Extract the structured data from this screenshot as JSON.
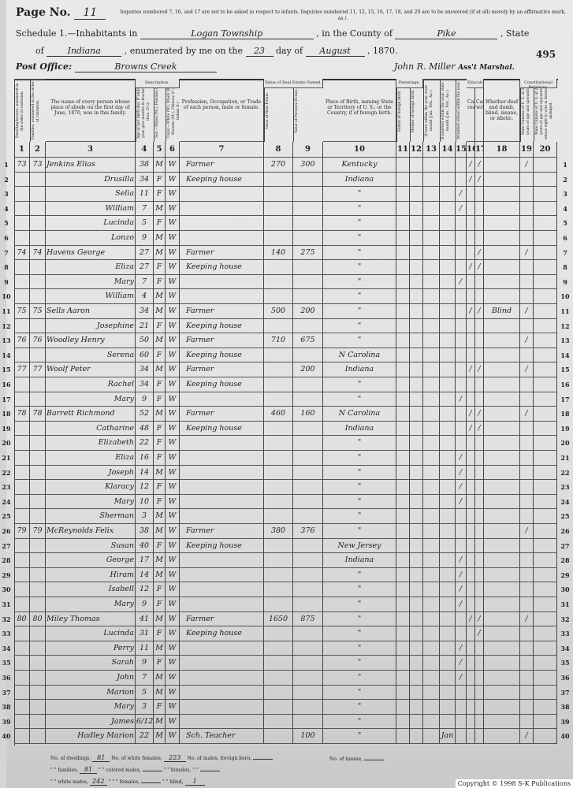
{
  "header": {
    "page_label": "Page No.",
    "page_no": "11",
    "instructions": "Inquiries numbered 7, 16, and 17 are not to be asked in respect to infants. Inquiries numbered 11, 12, 15, 16, 17, 18, and 20 are to be answered (if at all) merely by an affirmative mark, as /.",
    "schedule_label": "Schedule 1.—Inhabitants in",
    "township": "Logan Township",
    "county_label": ", in the County of",
    "county": "Pike",
    "state_label": ", State",
    "of_label": "of",
    "state": "Indiana",
    "enumerated_label": ", enumerated by me on the",
    "day": "23",
    "day_of_label": "day of",
    "month": "August",
    "year": ", 1870.",
    "sheet_no": "495",
    "post_office_label": "Post Office:",
    "post_office": "Browns Creek",
    "marshal_signature": "John R. Miller",
    "marshal_label": "Ass't Marshal."
  },
  "columns": [
    {
      "num": "1",
      "label": "Dwelling-houses, numbered in the order of visitation."
    },
    {
      "num": "2",
      "label": "Families, numbered in the order of visitation."
    },
    {
      "num": "3",
      "label": "The name of every person whose place of abode on the first day of June, 1870, was in this family."
    },
    {
      "num": "4",
      "label": "Age at last birth-day. If under 1 year, give months in fractions, thus, 3/12."
    },
    {
      "num": "5",
      "label": "Sex.—Males (M.), Females (F.)"
    },
    {
      "num": "6",
      "label": "Color.—White (W.), Black (B.), Mulatto (M.), Chinese (C.), Indian (I.)"
    },
    {
      "num": "7",
      "label": "Profession, Occupation, or Trade of each person, male or female."
    },
    {
      "num": "8",
      "label": "Value of Real Estate."
    },
    {
      "num": "9",
      "label": "Value of Personal Estate."
    },
    {
      "num": "10",
      "label": "Place of Birth, naming State or Territory of U. S.; or the Country, if of foreign birth."
    },
    {
      "num": "11",
      "label": "Father of foreign birth."
    },
    {
      "num": "12",
      "label": "Mother of foreign birth."
    },
    {
      "num": "13",
      "label": "If born within the year, state month (Jan., Feb., &c.)"
    },
    {
      "num": "14",
      "label": "If married within the year, state month (Jan., Feb., &c.)"
    },
    {
      "num": "15",
      "label": "Attended school within the year."
    },
    {
      "num": "16",
      "label": "Cannot read."
    },
    {
      "num": "17",
      "label": "Cannot write."
    },
    {
      "num": "18",
      "label": "Whether deaf and dumb, blind, insane, or idiotic."
    },
    {
      "num": "19",
      "label": "Male Citizens of U. S. of 21 years of age and upwards."
    },
    {
      "num": "20",
      "label": "Male Citizens of U. S. of 21 years of age and upwards, whose right to vote is denied or abridged."
    }
  ],
  "group_headers": {
    "description": "Description.",
    "value": "Value of Real Estate Owned.",
    "parentage": "Parentage.",
    "education": "Education.",
    "constitutional": "Constitutional Relations."
  },
  "rows": [
    [
      "1",
      "73",
      "73",
      "Jenkins Elias",
      "38",
      "M",
      "W",
      "Farmer",
      "270",
      "300",
      "Kentucky",
      "",
      "",
      "",
      "",
      "",
      "/",
      "/",
      "",
      "/",
      ""
    ],
    [
      "2",
      "",
      "",
      "Drusilla",
      "34",
      "F",
      "W",
      "Keeping house",
      "",
      "",
      "Indiana",
      "",
      "",
      "",
      "",
      "",
      "/",
      "/",
      "",
      "",
      ""
    ],
    [
      "3",
      "",
      "",
      "Selia",
      "11",
      "F",
      "W",
      "",
      "",
      "",
      "\"",
      "",
      "",
      "",
      "",
      "/",
      "",
      "",
      "",
      "",
      ""
    ],
    [
      "4",
      "",
      "",
      "William",
      "7",
      "M",
      "W",
      "",
      "",
      "",
      "\"",
      "",
      "",
      "",
      "",
      "/",
      "",
      "",
      "",
      "",
      ""
    ],
    [
      "5",
      "",
      "",
      "Lucinda",
      "5",
      "F",
      "W",
      "",
      "",
      "",
      "\"",
      "",
      "",
      "",
      "",
      "",
      "",
      "",
      "",
      "",
      ""
    ],
    [
      "6",
      "",
      "",
      "Lonzo",
      "9",
      "M",
      "W",
      "",
      "",
      "",
      "\"",
      "",
      "",
      "",
      "",
      "",
      "",
      "",
      "",
      "",
      ""
    ],
    [
      "7",
      "74",
      "74",
      "Havens George",
      "27",
      "M",
      "W",
      "Farmer",
      "140",
      "275",
      "\"",
      "",
      "",
      "",
      "",
      "",
      "",
      "/",
      "",
      "/",
      ""
    ],
    [
      "8",
      "",
      "",
      "Eliza",
      "27",
      "F",
      "W",
      "Keeping house",
      "",
      "",
      "\"",
      "",
      "",
      "",
      "",
      "",
      "/",
      "/",
      "",
      "",
      ""
    ],
    [
      "9",
      "",
      "",
      "Mary",
      "7",
      "F",
      "W",
      "",
      "",
      "",
      "\"",
      "",
      "",
      "",
      "",
      "/",
      "",
      "",
      "",
      "",
      ""
    ],
    [
      "10",
      "",
      "",
      "William",
      "4",
      "M",
      "W",
      "",
      "",
      "",
      "\"",
      "",
      "",
      "",
      "",
      "",
      "",
      "",
      "",
      "",
      ""
    ],
    [
      "11",
      "75",
      "75",
      "Sells Aaron",
      "34",
      "M",
      "W",
      "Farmer",
      "500",
      "200",
      "\"",
      "",
      "",
      "",
      "",
      "",
      "/",
      "/",
      "Blind",
      "/",
      ""
    ],
    [
      "12",
      "",
      "",
      "Josephine",
      "21",
      "F",
      "W",
      "Keeping house",
      "",
      "",
      "\"",
      "",
      "",
      "",
      "",
      "",
      "",
      "",
      "",
      "",
      ""
    ],
    [
      "13",
      "76",
      "76",
      "Woodley Henry",
      "50",
      "M",
      "W",
      "Farmer",
      "710",
      "675",
      "\"",
      "",
      "",
      "",
      "",
      "",
      "",
      "",
      "",
      "/",
      ""
    ],
    [
      "14",
      "",
      "",
      "Serena",
      "60",
      "F",
      "W",
      "Keeping house",
      "",
      "",
      "N Carolina",
      "",
      "",
      "",
      "",
      "",
      "",
      "",
      "",
      "",
      ""
    ],
    [
      "15",
      "77",
      "77",
      "Woolf Peter",
      "34",
      "M",
      "W",
      "Farmer",
      "",
      "200",
      "Indiana",
      "",
      "",
      "",
      "",
      "",
      "/",
      "/",
      "",
      "/",
      ""
    ],
    [
      "16",
      "",
      "",
      "Rachel",
      "34",
      "F",
      "W",
      "Keeping house",
      "",
      "",
      "\"",
      "",
      "",
      "",
      "",
      "",
      "",
      "",
      "",
      "",
      ""
    ],
    [
      "17",
      "",
      "",
      "Mary",
      "9",
      "F",
      "W",
      "",
      "",
      "",
      "\"",
      "",
      "",
      "",
      "",
      "/",
      "",
      "",
      "",
      "",
      ""
    ],
    [
      "18",
      "78",
      "78",
      "Barrett Richmond",
      "52",
      "M",
      "W",
      "Farmer",
      "460",
      "160",
      "N Carolina",
      "",
      "",
      "",
      "",
      "",
      "/",
      "/",
      "",
      "/",
      ""
    ],
    [
      "19",
      "",
      "",
      "Catharine",
      "48",
      "F",
      "W",
      "Keeping house",
      "",
      "",
      "Indiana",
      "",
      "",
      "",
      "",
      "",
      "/",
      "/",
      "",
      "",
      ""
    ],
    [
      "20",
      "",
      "",
      "Elizabeth",
      "22",
      "F",
      "W",
      "",
      "",
      "",
      "\"",
      "",
      "",
      "",
      "",
      "",
      "",
      "",
      "",
      "",
      ""
    ],
    [
      "21",
      "",
      "",
      "Eliza",
      "16",
      "F",
      "W",
      "",
      "",
      "",
      "\"",
      "",
      "",
      "",
      "",
      "/",
      "",
      "",
      "",
      "",
      ""
    ],
    [
      "22",
      "",
      "",
      "Joseph",
      "14",
      "M",
      "W",
      "",
      "",
      "",
      "\"",
      "",
      "",
      "",
      "",
      "/",
      "",
      "",
      "",
      "",
      ""
    ],
    [
      "23",
      "",
      "",
      "Klaracy",
      "12",
      "F",
      "W",
      "",
      "",
      "",
      "\"",
      "",
      "",
      "",
      "",
      "/",
      "",
      "",
      "",
      "",
      ""
    ],
    [
      "24",
      "",
      "",
      "Mary",
      "10",
      "F",
      "W",
      "",
      "",
      "",
      "\"",
      "",
      "",
      "",
      "",
      "/",
      "",
      "",
      "",
      "",
      ""
    ],
    [
      "25",
      "",
      "",
      "Sherman",
      "3",
      "M",
      "W",
      "",
      "",
      "",
      "\"",
      "",
      "",
      "",
      "",
      "",
      "",
      "",
      "",
      "",
      ""
    ],
    [
      "26",
      "79",
      "79",
      "McReynolds Felix",
      "38",
      "M",
      "W",
      "Farmer",
      "380",
      "376",
      "\"",
      "",
      "",
      "",
      "",
      "",
      "",
      "",
      "",
      "/",
      ""
    ],
    [
      "27",
      "",
      "",
      "Susan",
      "40",
      "F",
      "W",
      "Keeping house",
      "",
      "",
      "New Jersey",
      "",
      "",
      "",
      "",
      "",
      "",
      "",
      "",
      "",
      ""
    ],
    [
      "28",
      "",
      "",
      "George",
      "17",
      "M",
      "W",
      "",
      "",
      "",
      "Indiana",
      "",
      "",
      "",
      "",
      "/",
      "",
      "",
      "",
      "",
      ""
    ],
    [
      "29",
      "",
      "",
      "Hiram",
      "14",
      "M",
      "W",
      "",
      "",
      "",
      "\"",
      "",
      "",
      "",
      "",
      "/",
      "",
      "",
      "",
      "",
      ""
    ],
    [
      "30",
      "",
      "",
      "Isabell",
      "12",
      "F",
      "W",
      "",
      "",
      "",
      "\"",
      "",
      "",
      "",
      "",
      "/",
      "",
      "",
      "",
      "",
      ""
    ],
    [
      "31",
      "",
      "",
      "Mary",
      "9",
      "F",
      "W",
      "",
      "",
      "",
      "\"",
      "",
      "",
      "",
      "",
      "/",
      "",
      "",
      "",
      "",
      ""
    ],
    [
      "32",
      "80",
      "80",
      "Miley Thomas",
      "41",
      "M",
      "W",
      "Farmer",
      "1650",
      "875",
      "\"",
      "",
      "",
      "",
      "",
      "",
      "/",
      "/",
      "",
      "/",
      ""
    ],
    [
      "33",
      "",
      "",
      "Lucinda",
      "31",
      "F",
      "W",
      "Keeping house",
      "",
      "",
      "\"",
      "",
      "",
      "",
      "",
      "",
      "",
      "/",
      "",
      "",
      ""
    ],
    [
      "34",
      "",
      "",
      "Perry",
      "11",
      "M",
      "W",
      "",
      "",
      "",
      "\"",
      "",
      "",
      "",
      "",
      "/",
      "",
      "",
      "",
      "",
      ""
    ],
    [
      "35",
      "",
      "",
      "Sarah",
      "9",
      "F",
      "W",
      "",
      "",
      "",
      "\"",
      "",
      "",
      "",
      "",
      "/",
      "",
      "",
      "",
      "",
      ""
    ],
    [
      "36",
      "",
      "",
      "John",
      "7",
      "M",
      "W",
      "",
      "",
      "",
      "\"",
      "",
      "",
      "",
      "",
      "/",
      "",
      "",
      "",
      "",
      ""
    ],
    [
      "37",
      "",
      "",
      "Marion",
      "5",
      "M",
      "W",
      "",
      "",
      "",
      "\"",
      "",
      "",
      "",
      "",
      "",
      "",
      "",
      "",
      "",
      ""
    ],
    [
      "38",
      "",
      "",
      "Mary",
      "3",
      "F",
      "W",
      "",
      "",
      "",
      "\"",
      "",
      "",
      "",
      "",
      "",
      "",
      "",
      "",
      "",
      ""
    ],
    [
      "39",
      "",
      "",
      "James",
      "6/12",
      "M",
      "W",
      "",
      "",
      "",
      "\"",
      "",
      "",
      "",
      "",
      "",
      "",
      "",
      "",
      "",
      ""
    ],
    [
      "40",
      "",
      "",
      "Hadley Marion",
      "22",
      "M",
      "W",
      "Sch. Teacher",
      "",
      "100",
      "\"",
      "",
      "",
      "",
      "Jan",
      "",
      "",
      "",
      "",
      "/",
      ""
    ]
  ],
  "footer": {
    "dwellings_label": "No. of dwellings,",
    "dwellings": "81",
    "white_females_label": "No. of white females,",
    "white_females": "223",
    "foreign_males_label": "No. of males, foreign born,",
    "foreign_males": "",
    "families_label": "\" \" families,",
    "families": "81",
    "colored_males_label": "\" \" colored males,",
    "colored_males": "",
    "foreign_females_label": "\" \" females, \" \"",
    "foreign_females": "",
    "white_males_label": "\" \" white males,",
    "white_males": "242",
    "colored_females_label": "\" \" \" females,",
    "colored_females": "",
    "blind_label": "\" \" blind,",
    "blind": "1",
    "insane_label": "No. of insane,",
    "insane": ""
  },
  "copyright": "Copyright © 1998 S-K Publications"
}
